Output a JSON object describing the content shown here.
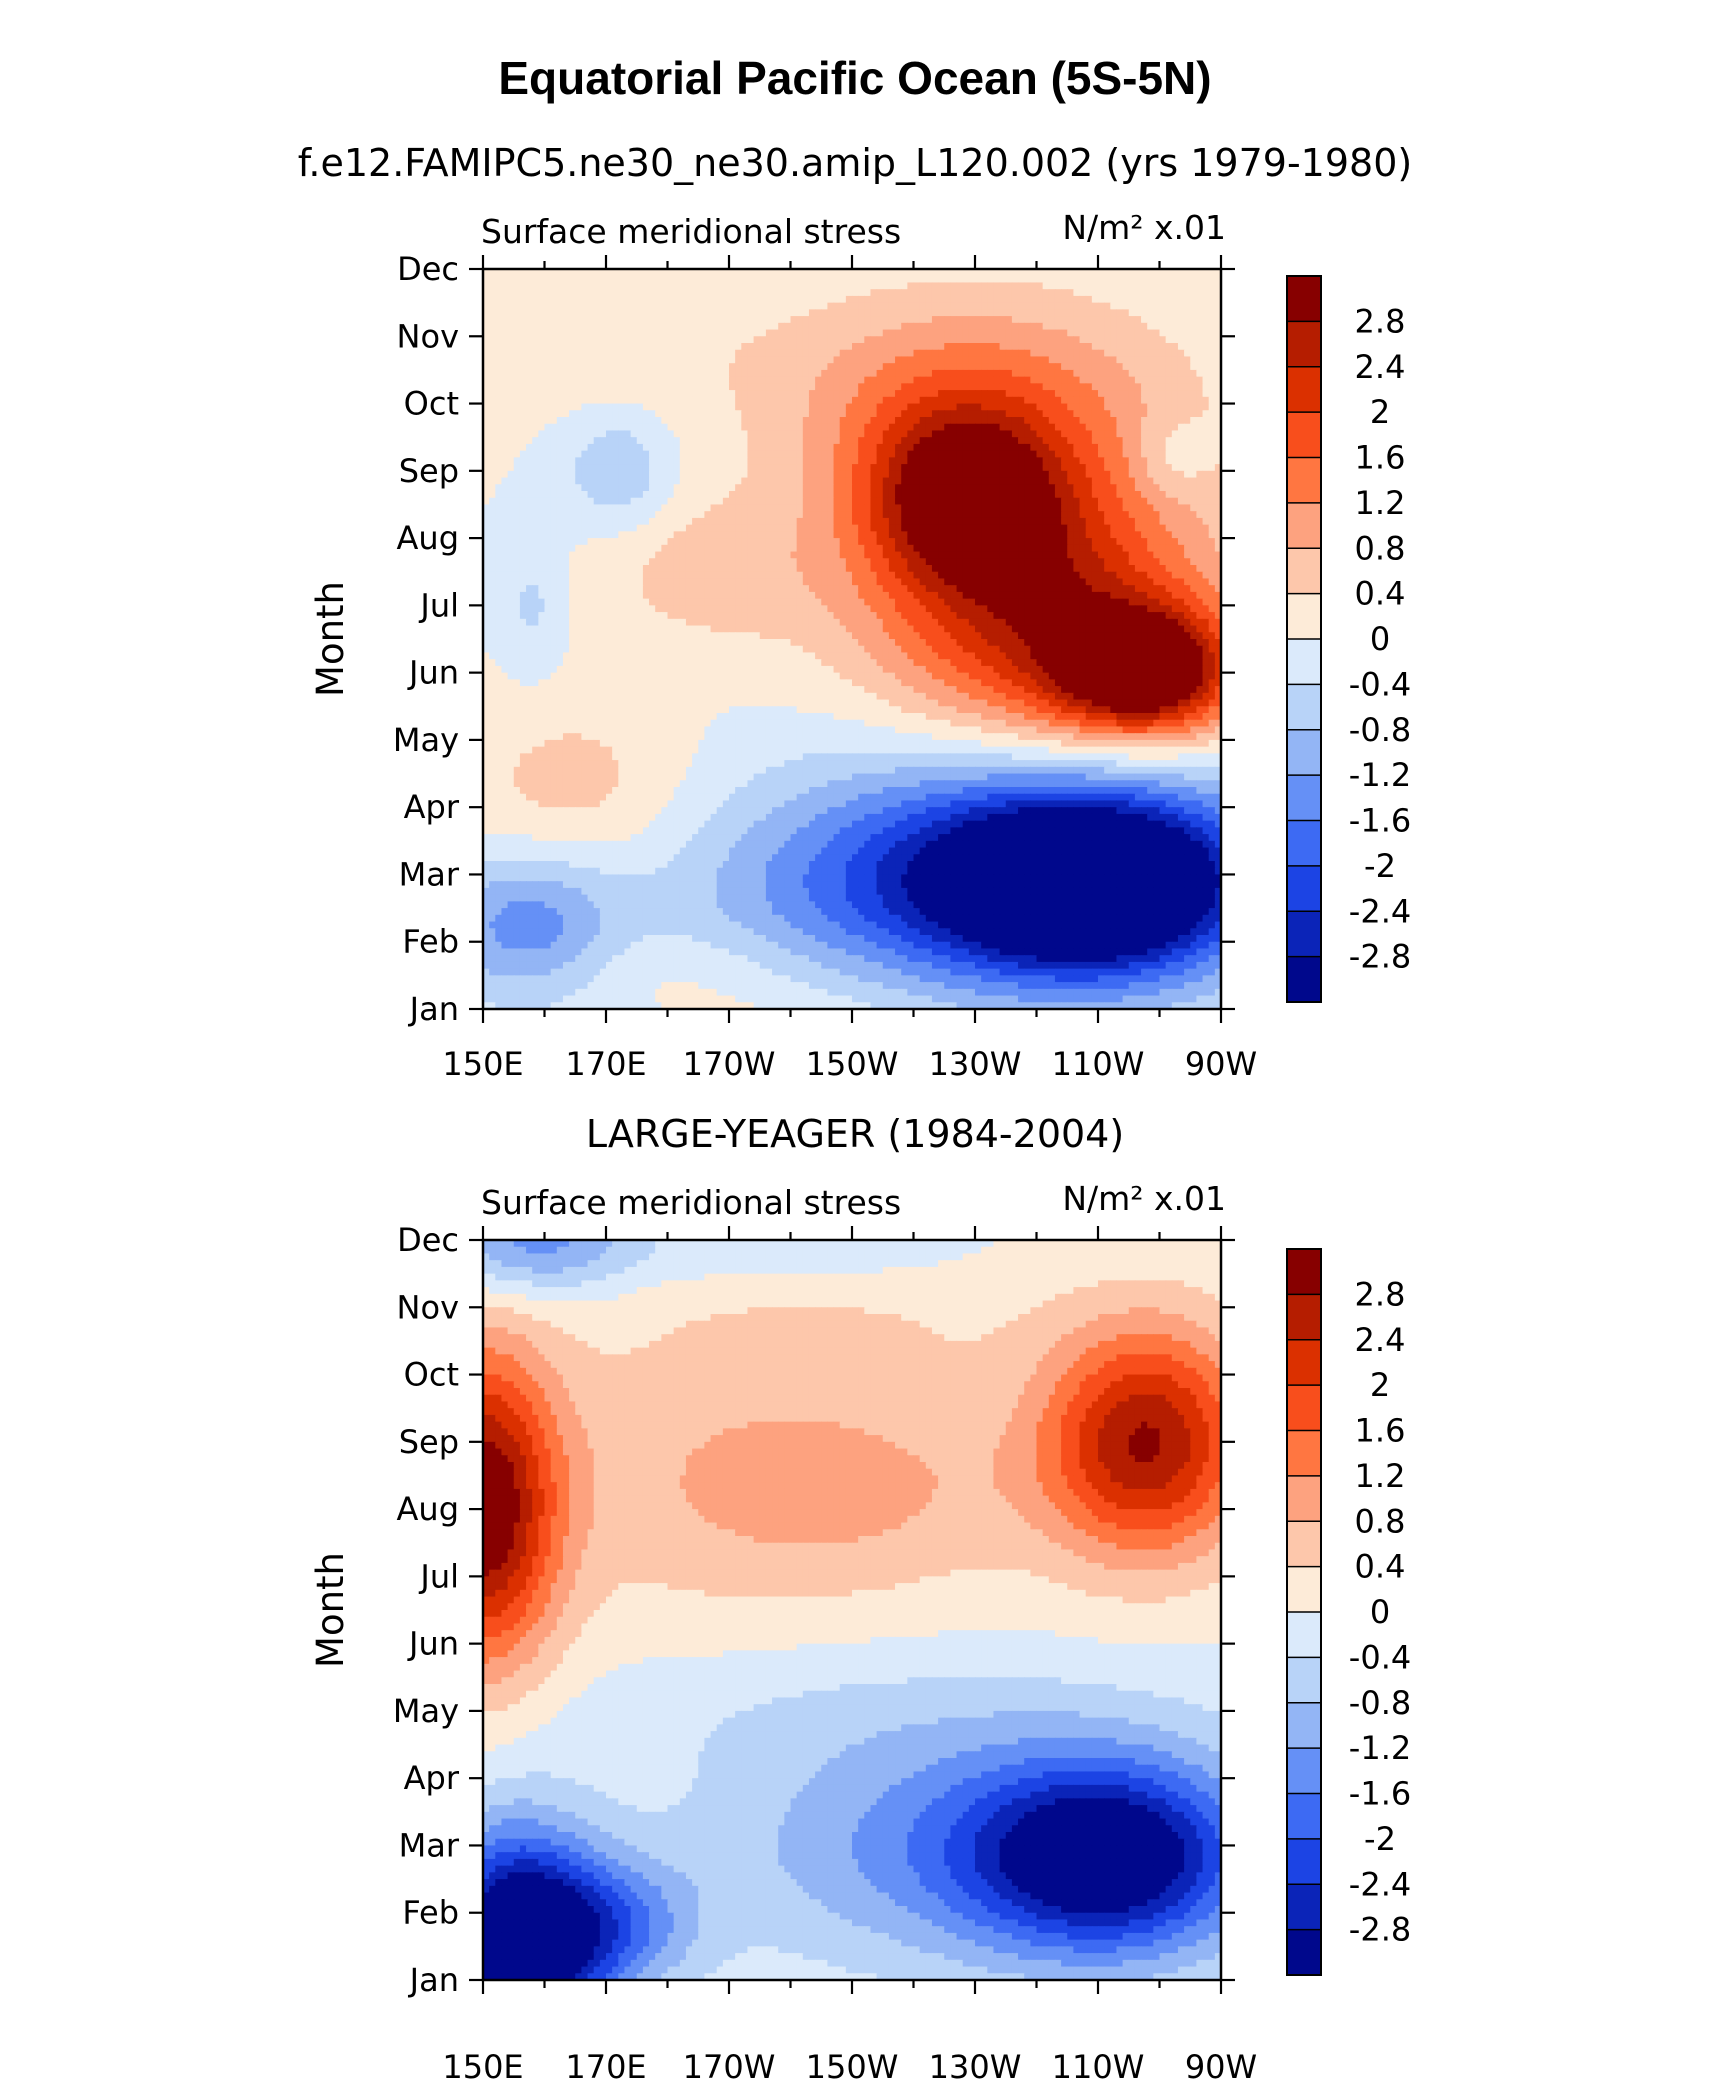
{
  "title": "Equatorial Pacific Ocean (5S-5N)",
  "chart_data": [
    {
      "type": "heatmap",
      "subtitle": "f.e12.FAMIPC5.ne30_ne30.amip_L120.002 (yrs 1979-1980)",
      "left_label": "Surface meridional stress",
      "right_label": "N/m² x.01",
      "ylabel": "Month",
      "xlabel": "",
      "x_ticks": [
        "150E",
        "170E",
        "170W",
        "150W",
        "130W",
        "110W",
        "90W"
      ],
      "x_values": [
        150,
        170,
        190,
        210,
        230,
        250,
        270
      ],
      "xlim": [
        150,
        270
      ],
      "y_ticks": [
        "Jan",
        "Feb",
        "Mar",
        "Apr",
        "May",
        "Jun",
        "Jul",
        "Aug",
        "Sep",
        "Oct",
        "Nov",
        "Dec"
      ],
      "ylim": [
        1,
        12
      ],
      "colorbar_levels": [
        "2.8",
        "2.4",
        "2",
        "1.6",
        "1.2",
        "0.8",
        "0.4",
        "0",
        "-0.4",
        "-0.8",
        "-1.2",
        "-1.6",
        "-2",
        "-2.4",
        "-2.8"
      ],
      "colorbar_colors": [
        "#870000",
        "#b51d00",
        "#db3000",
        "#f84e1c",
        "#ff7641",
        "#fda27f",
        "#fdc7ab",
        "#fdebd8",
        "#dbeafb",
        "#b8d3f8",
        "#93b5f5",
        "#6590f6",
        "#3d6af3",
        "#1c44e4",
        "#0b24b8",
        "#00088c"
      ],
      "features": [
        {
          "lon": 258,
          "month": 6.0,
          "value": 3.0,
          "rx": 14,
          "ry": 0.9
        },
        {
          "lon": 244,
          "month": 6.5,
          "value": 1.8,
          "rx": 26,
          "ry": 1.9
        },
        {
          "lon": 228,
          "month": 8.6,
          "value": 2.4,
          "rx": 16,
          "ry": 1.3
        },
        {
          "lon": 236,
          "month": 8.0,
          "value": 1.2,
          "rx": 30,
          "ry": 2.4
        },
        {
          "lon": 228,
          "month": 10.2,
          "value": 1.0,
          "rx": 32,
          "ry": 1.5
        },
        {
          "lon": 262,
          "month": 9.2,
          "value": -0.5,
          "rx": 6,
          "ry": 0.6
        },
        {
          "lon": 187,
          "month": 7.5,
          "value": 0.6,
          "rx": 18,
          "ry": 1.1
        },
        {
          "lon": 165,
          "month": 4.3,
          "value": 0.6,
          "rx": 18,
          "ry": 1.3
        },
        {
          "lon": 168,
          "month": 11.0,
          "value": 0.3,
          "rx": 26,
          "ry": 1.2
        },
        {
          "lon": 172,
          "month": 9.0,
          "value": -0.8,
          "rx": 9,
          "ry": 0.9
        },
        {
          "lon": 158,
          "month": 7.0,
          "value": -0.5,
          "rx": 5,
          "ry": 1.0
        },
        {
          "lon": 250,
          "month": 2.8,
          "value": -3.6,
          "rx": 24,
          "ry": 1.3
        },
        {
          "lon": 236,
          "month": 3.2,
          "value": -2.2,
          "rx": 38,
          "ry": 1.8
        },
        {
          "lon": 206,
          "month": 2.6,
          "value": -0.6,
          "rx": 30,
          "ry": 1.3
        },
        {
          "lon": 157,
          "month": 2.2,
          "value": -1.4,
          "rx": 15,
          "ry": 1.1
        },
        {
          "lon": 182,
          "month": 1.6,
          "value": 0.3,
          "rx": 26,
          "ry": 0.6
        },
        {
          "lon": 200,
          "month": 1.0,
          "value": 0.2,
          "rx": 18,
          "ry": 0.4
        }
      ]
    },
    {
      "type": "heatmap",
      "subtitle": "LARGE-YEAGER (1984-2004)",
      "left_label": "Surface meridional stress",
      "right_label": "N/m² x.01",
      "ylabel": "Month",
      "xlabel": "",
      "x_ticks": [
        "150E",
        "170E",
        "170W",
        "150W",
        "130W",
        "110W",
        "90W"
      ],
      "x_values": [
        150,
        170,
        190,
        210,
        230,
        250,
        270
      ],
      "xlim": [
        150,
        270
      ],
      "y_ticks": [
        "Jan",
        "Feb",
        "Mar",
        "Apr",
        "May",
        "Jun",
        "Jul",
        "Aug",
        "Sep",
        "Oct",
        "Nov",
        "Dec"
      ],
      "ylim": [
        1,
        12
      ],
      "colorbar_levels": [
        "2.8",
        "2.4",
        "2",
        "1.6",
        "1.2",
        "0.8",
        "0.4",
        "0",
        "-0.4",
        "-0.8",
        "-1.2",
        "-1.6",
        "-2",
        "-2.4",
        "-2.8"
      ],
      "colorbar_colors": [
        "#870000",
        "#b51d00",
        "#db3000",
        "#f84e1c",
        "#ff7641",
        "#fda27f",
        "#fdc7ab",
        "#fdebd8",
        "#dbeafb",
        "#b8d3f8",
        "#93b5f5",
        "#6590f6",
        "#3d6af3",
        "#1c44e4",
        "#0b24b8",
        "#00088c"
      ],
      "features": [
        {
          "lon": 150,
          "month": 8.0,
          "value": 3.2,
          "rx": 12,
          "ry": 2.3
        },
        {
          "lon": 258,
          "month": 9.0,
          "value": 2.8,
          "rx": 17,
          "ry": 1.7
        },
        {
          "lon": 212,
          "month": 8.3,
          "value": 0.8,
          "rx": 30,
          "ry": 1.6
        },
        {
          "lon": 182,
          "month": 8.6,
          "value": 0.5,
          "rx": 30,
          "ry": 2.4
        },
        {
          "lon": 212,
          "month": 10.8,
          "value": 0.3,
          "rx": 36,
          "ry": 1.0
        },
        {
          "lon": 158,
          "month": 12.0,
          "value": -1.4,
          "rx": 16,
          "ry": 0.8
        },
        {
          "lon": 198,
          "month": 11.8,
          "value": -0.4,
          "rx": 28,
          "ry": 0.5
        },
        {
          "lon": 155,
          "month": 1.4,
          "value": -3.8,
          "rx": 13,
          "ry": 1.8
        },
        {
          "lon": 170,
          "month": 1.8,
          "value": -1.6,
          "rx": 14,
          "ry": 1.0
        },
        {
          "lon": 252,
          "month": 2.8,
          "value": -2.8,
          "rx": 22,
          "ry": 1.4
        },
        {
          "lon": 230,
          "month": 3.0,
          "value": -1.4,
          "rx": 42,
          "ry": 1.8
        },
        {
          "lon": 210,
          "month": 1.3,
          "value": 0.0,
          "rx": 14,
          "ry": 0.6
        },
        {
          "lon": 210,
          "month": 5.0,
          "value": -0.3,
          "rx": 55,
          "ry": 1.0
        }
      ]
    }
  ]
}
